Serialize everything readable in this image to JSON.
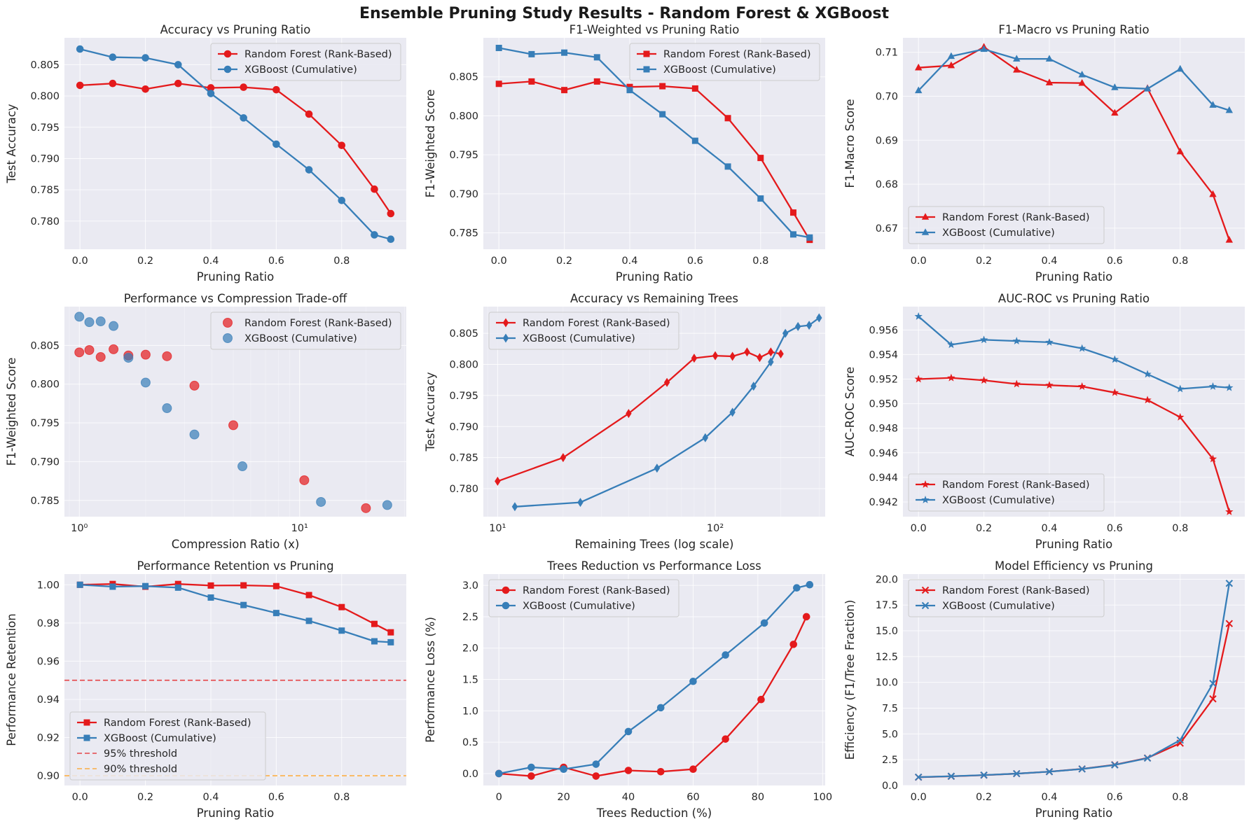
{
  "figure": {
    "title": "Ensemble Pruning Study Results - Random Forest & XGBoost",
    "colors": {
      "rf": "#e41a1c",
      "xgb": "#377eb8",
      "thr95": "#e41a1c",
      "thr90": "#ff9f1a",
      "panel_bg": "#eaeaf2",
      "grid": "#ffffff"
    }
  },
  "chart_data": [
    {
      "type": "line",
      "title": "Accuracy vs Pruning Ratio",
      "xlabel": "Pruning Ratio",
      "ylabel": "Test Accuracy",
      "xlim": [
        -0.0475,
        0.9975
      ],
      "ylim": [
        0.7755,
        0.8093
      ],
      "xticks": [
        0.0,
        0.2,
        0.4,
        0.6,
        0.8
      ],
      "yticks": [
        0.78,
        0.785,
        0.79,
        0.795,
        0.8,
        0.805
      ],
      "xtick_labels": [
        "0.0",
        "0.2",
        "0.4",
        "0.6",
        "0.8"
      ],
      "ytick_labels": [
        "0.780",
        "0.785",
        "0.790",
        "0.795",
        "0.800",
        "0.805"
      ],
      "legend": "upper right",
      "x": [
        0.0,
        0.1,
        0.2,
        0.3,
        0.4,
        0.5,
        0.6,
        0.7,
        0.8,
        0.9,
        0.95
      ],
      "series": [
        {
          "name": "Random Forest (Rank-Based)",
          "color": "#e41a1c",
          "marker": "o",
          "values": [
            0.8017,
            0.802,
            0.8011,
            0.802,
            0.8013,
            0.8014,
            0.801,
            0.7971,
            0.7921,
            0.7851,
            0.7812
          ]
        },
        {
          "name": "XGBoost (Cumulative)",
          "color": "#377eb8",
          "marker": "o",
          "values": [
            0.8075,
            0.8062,
            0.8061,
            0.805,
            0.8004,
            0.7965,
            0.7923,
            0.7882,
            0.7833,
            0.7778,
            0.7771
          ]
        }
      ]
    },
    {
      "type": "line",
      "title": "F1-Weighted vs Pruning Ratio",
      "xlabel": "Pruning Ratio",
      "ylabel": "F1-Weighted Score",
      "xlim": [
        -0.0475,
        0.9975
      ],
      "ylim": [
        0.7829,
        0.81
      ],
      "xticks": [
        0.0,
        0.2,
        0.4,
        0.6,
        0.8
      ],
      "yticks": [
        0.785,
        0.79,
        0.795,
        0.8,
        0.805
      ],
      "xtick_labels": [
        "0.0",
        "0.2",
        "0.4",
        "0.6",
        "0.8"
      ],
      "ytick_labels": [
        "0.785",
        "0.790",
        "0.795",
        "0.800",
        "0.805"
      ],
      "legend": "upper right",
      "x": [
        0.0,
        0.1,
        0.2,
        0.3,
        0.4,
        0.5,
        0.6,
        0.7,
        0.8,
        0.9,
        0.95
      ],
      "series": [
        {
          "name": "Random Forest (Rank-Based)",
          "color": "#e41a1c",
          "marker": "s",
          "values": [
            0.8041,
            0.8044,
            0.8033,
            0.8044,
            0.8037,
            0.8038,
            0.8035,
            0.7997,
            0.7946,
            0.7876,
            0.7841
          ]
        },
        {
          "name": "XGBoost (Cumulative)",
          "color": "#377eb8",
          "marker": "s",
          "values": [
            0.8087,
            0.8079,
            0.8081,
            0.8075,
            0.8033,
            0.8002,
            0.7968,
            0.7935,
            0.7894,
            0.7848,
            0.7844
          ]
        }
      ]
    },
    {
      "type": "line",
      "title": "F1-Macro vs Pruning Ratio",
      "xlabel": "Pruning Ratio",
      "ylabel": "F1-Macro Score",
      "xlim": [
        -0.0475,
        0.9975
      ],
      "ylim": [
        0.6652,
        0.7133
      ],
      "xticks": [
        0.0,
        0.2,
        0.4,
        0.6,
        0.8
      ],
      "yticks": [
        0.67,
        0.68,
        0.69,
        0.7,
        0.71
      ],
      "xtick_labels": [
        "0.0",
        "0.2",
        "0.4",
        "0.6",
        "0.8"
      ],
      "ytick_labels": [
        "0.67",
        "0.68",
        "0.69",
        "0.70",
        "0.71"
      ],
      "legend": "lower left",
      "x": [
        0.0,
        0.1,
        0.2,
        0.3,
        0.4,
        0.5,
        0.6,
        0.7,
        0.8,
        0.9,
        0.95
      ],
      "series": [
        {
          "name": "Random Forest (Rank-Based)",
          "color": "#e41a1c",
          "marker": "^",
          "values": [
            0.7065,
            0.707,
            0.7112,
            0.706,
            0.7031,
            0.703,
            0.6962,
            0.7018,
            0.6874,
            0.6777,
            0.6673
          ]
        },
        {
          "name": "XGBoost (Cumulative)",
          "color": "#377eb8",
          "marker": "^",
          "values": [
            0.7013,
            0.7091,
            0.7107,
            0.7085,
            0.7085,
            0.7049,
            0.702,
            0.7017,
            0.7062,
            0.698,
            0.6968
          ]
        }
      ]
    },
    {
      "type": "scatter",
      "title": "Performance vs Compression Trade-off",
      "xlabel": "Compression Ratio (x)",
      "ylabel": "F1-Weighted Score",
      "xscale": "log",
      "xlim": [
        0.856,
        30.5
      ],
      "ylim": [
        0.7829,
        0.81
      ],
      "xticks": [
        1,
        10
      ],
      "yticks": [
        0.785,
        0.79,
        0.795,
        0.8,
        0.805
      ],
      "xtick_labels": [
        "10⁰",
        "10¹"
      ],
      "ytick_labels": [
        "0.785",
        "0.790",
        "0.795",
        "0.800",
        "0.805"
      ],
      "legend": "upper right",
      "series": [
        {
          "name": "Random Forest (Rank-Based)",
          "color": "#e41a1c",
          "marker": "o",
          "alpha": 0.7,
          "x": [
            1.0,
            1.11,
            1.25,
            1.43,
            1.67,
            2.0,
            2.5,
            3.33,
            5.0,
            10.5,
            20.0
          ],
          "values": [
            0.8041,
            0.8044,
            0.8035,
            0.8045,
            0.8037,
            0.8038,
            0.8036,
            0.7998,
            0.7947,
            0.7876,
            0.784
          ]
        },
        {
          "name": "XGBoost (Cumulative)",
          "color": "#377eb8",
          "marker": "o",
          "alpha": 0.7,
          "x": [
            1.0,
            1.11,
            1.25,
            1.43,
            1.67,
            2.0,
            2.5,
            3.33,
            5.5,
            12.5,
            25.0
          ],
          "values": [
            0.8087,
            0.808,
            0.8081,
            0.8075,
            0.8034,
            0.8002,
            0.7969,
            0.7935,
            0.7894,
            0.7848,
            0.7844
          ]
        }
      ]
    },
    {
      "type": "line",
      "title": "Accuracy vs Remaining Trees",
      "xlabel": "Remaining Trees (log scale)",
      "ylabel": "Test Accuracy",
      "xscale": "log",
      "xlim": [
        8.6,
        320
      ],
      "ylim": [
        0.7755,
        0.8093
      ],
      "xticks": [
        10,
        100
      ],
      "yticks": [
        0.78,
        0.785,
        0.79,
        0.795,
        0.8,
        0.805
      ],
      "xtick_labels": [
        "10¹",
        "10²"
      ],
      "ytick_labels": [
        "0.780",
        "0.785",
        "0.790",
        "0.795",
        "0.800",
        "0.805"
      ],
      "legend": "upper left",
      "series": [
        {
          "name": "Random Forest (Rank-Based)",
          "color": "#e41a1c",
          "marker": "d",
          "x": [
            200,
            180,
            160,
            140,
            120,
            100,
            80,
            60,
            40,
            20,
            10
          ],
          "values": [
            0.8017,
            0.802,
            0.8011,
            0.802,
            0.8013,
            0.8014,
            0.801,
            0.7971,
            0.7921,
            0.785,
            0.7812
          ]
        },
        {
          "name": "XGBoost (Cumulative)",
          "color": "#377eb8",
          "marker": "d",
          "x": [
            300,
            270,
            240,
            210,
            180,
            150,
            120,
            90,
            54,
            24,
            12
          ],
          "values": [
            0.8075,
            0.8063,
            0.8061,
            0.805,
            0.8004,
            0.7965,
            0.7923,
            0.7882,
            0.7833,
            0.7778,
            0.7771
          ]
        }
      ]
    },
    {
      "type": "line",
      "title": "AUC-ROC vs Pruning Ratio",
      "xlabel": "Pruning Ratio",
      "ylabel": "AUC-ROC Score",
      "xlim": [
        -0.0475,
        0.9975
      ],
      "ylim": [
        0.9408,
        0.9579
      ],
      "xticks": [
        0.0,
        0.2,
        0.4,
        0.6,
        0.8
      ],
      "yticks": [
        0.942,
        0.944,
        0.946,
        0.948,
        0.95,
        0.952,
        0.954,
        0.956
      ],
      "xtick_labels": [
        "0.0",
        "0.2",
        "0.4",
        "0.6",
        "0.8"
      ],
      "ytick_labels": [
        "0.942",
        "0.944",
        "0.946",
        "0.948",
        "0.950",
        "0.952",
        "0.954",
        "0.956"
      ],
      "legend": "lower left",
      "x": [
        0.0,
        0.1,
        0.2,
        0.3,
        0.4,
        0.5,
        0.6,
        0.7,
        0.8,
        0.9,
        0.95
      ],
      "series": [
        {
          "name": "Random Forest (Rank-Based)",
          "color": "#e41a1c",
          "marker": "*",
          "values": [
            0.952,
            0.9521,
            0.9519,
            0.9516,
            0.9515,
            0.9514,
            0.9509,
            0.9503,
            0.9489,
            0.9455,
            0.9412
          ]
        },
        {
          "name": "XGBoost (Cumulative)",
          "color": "#377eb8",
          "marker": "*",
          "values": [
            0.9571,
            0.9548,
            0.9552,
            0.9551,
            0.955,
            0.9545,
            0.9536,
            0.9524,
            0.9512,
            0.9514,
            0.9513
          ]
        }
      ]
    },
    {
      "type": "line",
      "title": "Performance Retention vs Pruning",
      "xlabel": "Pruning Ratio",
      "ylabel": "Performance Retention",
      "xlim": [
        -0.0475,
        0.9975
      ],
      "ylim": [
        0.8949,
        1.0056
      ],
      "xticks": [
        0.0,
        0.2,
        0.4,
        0.6,
        0.8
      ],
      "yticks": [
        0.9,
        0.92,
        0.94,
        0.96,
        0.98,
        1.0
      ],
      "xtick_labels": [
        "0.0",
        "0.2",
        "0.4",
        "0.6",
        "0.8"
      ],
      "ytick_labels": [
        "0.90",
        "0.92",
        "0.94",
        "0.96",
        "0.98",
        "1.00"
      ],
      "legend": "lower left",
      "x": [
        0.0,
        0.1,
        0.2,
        0.3,
        0.4,
        0.5,
        0.6,
        0.7,
        0.8,
        0.9,
        0.95
      ],
      "series": [
        {
          "name": "Random Forest (Rank-Based)",
          "color": "#e41a1c",
          "marker": "s",
          "values": [
            1.0,
            1.0004,
            0.999,
            1.0004,
            0.9996,
            0.9997,
            0.9993,
            0.9946,
            0.9883,
            0.9795,
            0.9751
          ]
        },
        {
          "name": "XGBoost (Cumulative)",
          "color": "#377eb8",
          "marker": "s",
          "values": [
            1.0,
            0.999,
            0.9993,
            0.9985,
            0.9933,
            0.9894,
            0.9852,
            0.9811,
            0.976,
            0.9704,
            0.9699
          ]
        }
      ],
      "hlines": [
        {
          "name": "95% threshold",
          "y": 0.95,
          "color": "#e41a1c"
        },
        {
          "name": "90% threshold",
          "y": 0.9,
          "color": "#ff9f1a"
        }
      ]
    },
    {
      "type": "line",
      "title": "Trees Reduction vs Performance Loss",
      "xlabel": "Trees Reduction (%)",
      "ylabel": "Performance Loss (%)",
      "xlim": [
        -4.8,
        100.8
      ],
      "ylim": [
        -0.19,
        3.18
      ],
      "xticks": [
        0,
        20,
        40,
        60,
        80,
        100
      ],
      "yticks": [
        0.0,
        0.5,
        1.0,
        1.5,
        2.0,
        2.5,
        3.0
      ],
      "xtick_labels": [
        "0",
        "20",
        "40",
        "60",
        "80",
        "100"
      ],
      "ytick_labels": [
        "0.0",
        "0.5",
        "1.0",
        "1.5",
        "2.0",
        "2.5",
        "3.0"
      ],
      "legend": "upper left",
      "series": [
        {
          "name": "Random Forest (Rank-Based)",
          "color": "#e41a1c",
          "marker": "o",
          "x": [
            0,
            10,
            20,
            30,
            40,
            50,
            60,
            70,
            81,
            91,
            95
          ],
          "values": [
            0.0,
            -0.04,
            0.1,
            -0.04,
            0.05,
            0.03,
            0.07,
            0.55,
            1.18,
            2.06,
            2.5
          ]
        },
        {
          "name": "XGBoost (Cumulative)",
          "color": "#377eb8",
          "marker": "o",
          "x": [
            0,
            10,
            20,
            30,
            40,
            50,
            60,
            70,
            82,
            92,
            96
          ],
          "values": [
            0.0,
            0.1,
            0.07,
            0.15,
            0.67,
            1.05,
            1.47,
            1.89,
            2.4,
            2.96,
            3.01
          ]
        }
      ]
    },
    {
      "type": "line",
      "title": "Model Efficiency vs Pruning",
      "xlabel": "Pruning Ratio",
      "ylabel": "Efficiency (F1/Tree Fraction)",
      "xlim": [
        -0.0475,
        0.9975
      ],
      "ylim": [
        0.0,
        20.5
      ],
      "xticks": [
        0.0,
        0.2,
        0.4,
        0.6,
        0.8
      ],
      "yticks": [
        0.0,
        2.5,
        5.0,
        7.5,
        10.0,
        12.5,
        15.0,
        17.5,
        20.0
      ],
      "xtick_labels": [
        "0.0",
        "0.2",
        "0.4",
        "0.6",
        "0.8"
      ],
      "ytick_labels": [
        "0.0",
        "2.5",
        "5.0",
        "7.5",
        "10.0",
        "12.5",
        "15.0",
        "17.5",
        "20.0"
      ],
      "legend": "upper left",
      "x": [
        0.0,
        0.1,
        0.2,
        0.3,
        0.4,
        0.5,
        0.6,
        0.7,
        0.8,
        0.9,
        0.95
      ],
      "series": [
        {
          "name": "Random Forest (Rank-Based)",
          "color": "#e41a1c",
          "marker": "x",
          "values": [
            0.8,
            0.89,
            1.0,
            1.15,
            1.34,
            1.61,
            2.01,
            2.67,
            4.1,
            8.4,
            15.7
          ]
        },
        {
          "name": "XGBoost (Cumulative)",
          "color": "#377eb8",
          "marker": "x",
          "values": [
            0.81,
            0.9,
            1.01,
            1.15,
            1.34,
            1.6,
            1.99,
            2.65,
            4.4,
            9.9,
            19.6
          ]
        }
      ]
    }
  ]
}
